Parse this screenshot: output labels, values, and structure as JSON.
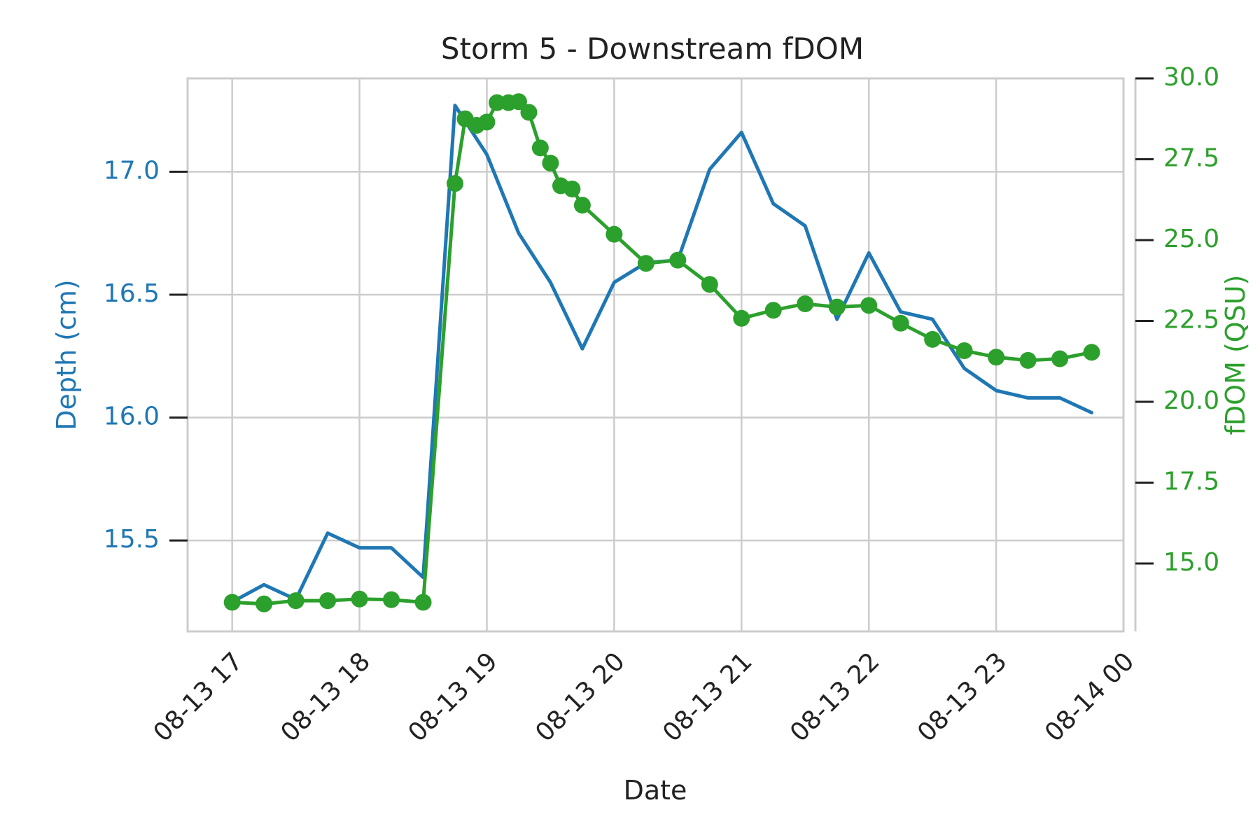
{
  "chart_data": {
    "type": "line",
    "title": "Storm 5 - Downstream fDOM",
    "xlabel": "Date",
    "ylabel_left": "Depth (cm)",
    "ylabel_right": "fDOM (QSU)",
    "grid": true,
    "x_ticks": [
      "08-13 17",
      "08-13 18",
      "08-13 19",
      "08-13 20",
      "08-13 21",
      "08-13 22",
      "08-13 23",
      "08-14 00"
    ],
    "xlim_hours": [
      16.65,
      24.0
    ],
    "left_ticks": [
      "15.5",
      "16.0",
      "16.5",
      "17.0"
    ],
    "left_tick_values": [
      15.5,
      16.0,
      16.5,
      17.0
    ],
    "ylim_left": [
      15.13,
      17.38
    ],
    "right_ticks": [
      "15.0",
      "17.5",
      "20.0",
      "22.5",
      "25.0",
      "27.5",
      "30.0"
    ],
    "right_tick_values": [
      15.0,
      17.5,
      20.0,
      22.5,
      25.0,
      27.5,
      30.0
    ],
    "ylim_right": [
      12.9,
      30.0
    ],
    "colors": {
      "depth": "#1f77b4",
      "fdom": "#2ca02c",
      "grid": "#cccccc",
      "text": "#222222"
    },
    "series": [
      {
        "axis": "left",
        "marker": "none",
        "x_hours": [
          17.0,
          17.25,
          17.5,
          17.75,
          18.0,
          18.25,
          18.5,
          18.75,
          19.0,
          19.25,
          19.5,
          19.75,
          20.0,
          20.25,
          20.5,
          20.75,
          21.0,
          21.25,
          21.5,
          21.75,
          22.0,
          22.25,
          22.5,
          22.75,
          23.0,
          23.25,
          23.5,
          23.75
        ],
        "values": [
          15.25,
          15.32,
          15.26,
          15.53,
          15.47,
          15.47,
          15.35,
          17.27,
          17.07,
          16.75,
          16.55,
          16.28,
          16.55,
          16.63,
          16.64,
          17.01,
          17.16,
          16.87,
          16.78,
          16.4,
          16.67,
          16.43,
          16.4,
          16.2,
          16.11,
          16.08,
          16.08,
          16.02
        ]
      },
      {
        "axis": "right",
        "marker": "circle",
        "x_hours": [
          17.0,
          17.25,
          17.5,
          17.75,
          18.0,
          18.25,
          18.5,
          18.75,
          18.83,
          18.92,
          19.0,
          19.08,
          19.17,
          19.25,
          19.33,
          19.42,
          19.5,
          19.58,
          19.67,
          19.75,
          20.0,
          20.25,
          20.5,
          20.75,
          21.0,
          21.25,
          21.5,
          21.75,
          22.0,
          22.25,
          22.5,
          22.75,
          23.0,
          23.25,
          23.5,
          23.75
        ],
        "values": [
          13.8,
          13.75,
          13.85,
          13.85,
          13.9,
          13.88,
          13.8,
          26.75,
          28.75,
          28.55,
          28.65,
          29.25,
          29.25,
          29.28,
          28.95,
          27.85,
          27.38,
          26.68,
          26.58,
          26.08,
          25.18,
          24.28,
          24.38,
          23.63,
          22.58,
          22.83,
          23.03,
          22.93,
          22.98,
          22.43,
          21.93,
          21.58,
          21.38,
          21.28,
          21.33,
          21.53
        ]
      }
    ]
  }
}
